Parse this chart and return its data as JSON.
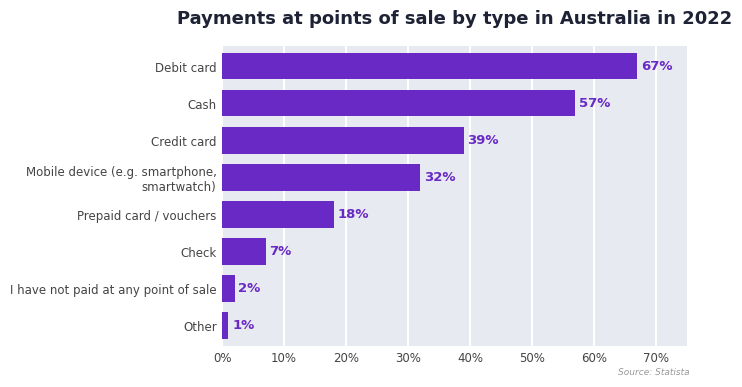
{
  "title": "Payments at points of sale by type in Australia in 2022",
  "categories": [
    "Other",
    "I have not paid at any point of sale",
    "Check",
    "Prepaid card / vouchers",
    "Mobile device (e.g. smartphone,\nsmartwatch)",
    "Credit card",
    "Cash",
    "Debit card"
  ],
  "values": [
    1,
    2,
    7,
    18,
    32,
    39,
    57,
    67
  ],
  "bar_color": "#6929c4",
  "label_color": "#6929c4",
  "title_color": "#1e2235",
  "background_color": "#ffffff",
  "plot_bg_color": "#e8eaf2",
  "grid_color": "#ffffff",
  "tick_label_color": "#444444",
  "xlim": [
    0,
    75
  ],
  "xticks": [
    0,
    10,
    20,
    30,
    40,
    50,
    60,
    70
  ],
  "xtick_labels": [
    "0%",
    "10%",
    "20%",
    "30%",
    "40%",
    "50%",
    "60%",
    "70%"
  ],
  "source_text": "Source: Statista",
  "title_fontsize": 13,
  "label_fontsize": 8.5,
  "tick_fontsize": 8.5,
  "value_fontsize": 9.5,
  "bar_height": 0.72
}
